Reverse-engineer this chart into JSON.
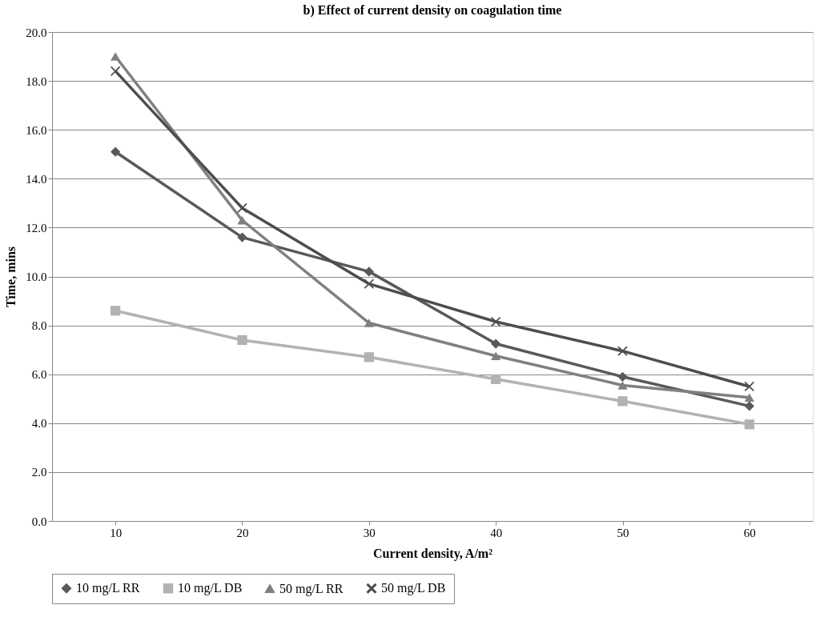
{
  "chart_data": {
    "type": "line",
    "title": "b) Effect of current density on coagulation time",
    "xlabel": "Current density, A/m²",
    "ylabel": "Time, mins",
    "categories": [
      "10",
      "20",
      "30",
      "40",
      "50",
      "60"
    ],
    "series": [
      {
        "name": "10 mg/L RR",
        "color": "#595959",
        "marker": "diamond",
        "values": [
          15.1,
          11.6,
          10.2,
          7.25,
          5.9,
          4.7
        ]
      },
      {
        "name": "10 mg/L DB",
        "color": "#b2b2b2",
        "marker": "square",
        "values": [
          8.6,
          7.4,
          6.7,
          5.8,
          4.9,
          3.95
        ]
      },
      {
        "name": "50 mg/L RR",
        "color": "#808080",
        "marker": "triangle",
        "values": [
          19.0,
          12.3,
          8.1,
          6.75,
          5.55,
          5.05
        ]
      },
      {
        "name": "50 mg/L DB",
        "color": "#4d4d4d",
        "marker": "cross",
        "values": [
          18.4,
          12.8,
          9.7,
          8.15,
          6.95,
          5.5
        ]
      }
    ],
    "ylim": [
      0,
      20
    ],
    "yticks": [
      {
        "value": 0,
        "label": "0.0"
      },
      {
        "value": 2,
        "label": "2.0"
      },
      {
        "value": 4,
        "label": "4.0"
      },
      {
        "value": 6,
        "label": "6.0"
      },
      {
        "value": 8,
        "label": "8.0"
      },
      {
        "value": 10,
        "label": "10.0"
      },
      {
        "value": 12,
        "label": "12.0"
      },
      {
        "value": 14,
        "label": "14.0"
      },
      {
        "value": 16,
        "label": "16.0"
      },
      {
        "value": 18,
        "label": "18.0"
      },
      {
        "value": 20,
        "label": "20.0"
      }
    ],
    "grid": "y",
    "legend": "bottom",
    "line_style": "solid"
  }
}
